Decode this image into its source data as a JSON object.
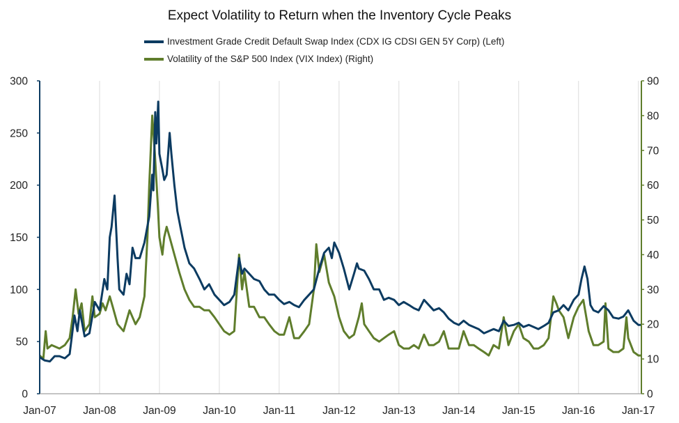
{
  "chart_data": {
    "type": "line",
    "title": "Expect Volatility to Return when the Inventory Cycle Peaks",
    "x_labels": [
      "Jan-07",
      "Jan-08",
      "Jan-09",
      "Jan-10",
      "Jan-11",
      "Jan-12",
      "Jan-13",
      "Jan-14",
      "Jan-15",
      "Jan-16",
      "Jan-17"
    ],
    "x_range": [
      2007.0,
      2017.05
    ],
    "left_axis": {
      "min": 0,
      "max": 300,
      "ticks": [
        0,
        50,
        100,
        150,
        200,
        250,
        300
      ],
      "color": "#0c3b61"
    },
    "right_axis": {
      "min": 0,
      "max": 90,
      "ticks": [
        0,
        10,
        20,
        30,
        40,
        50,
        60,
        70,
        80,
        90
      ],
      "color": "#5f7d2c"
    },
    "grid": "vertical",
    "legend_position": "top-center",
    "series": [
      {
        "name": "Investment Grade Credit Default Swap Index (CDX IG CDSI GEN 5Y Corp) (Left)",
        "axis": "left",
        "color": "#0c3b61",
        "points": [
          [
            2007.0,
            35
          ],
          [
            2007.08,
            32
          ],
          [
            2007.17,
            31
          ],
          [
            2007.25,
            36
          ],
          [
            2007.33,
            36
          ],
          [
            2007.42,
            34
          ],
          [
            2007.5,
            38
          ],
          [
            2007.58,
            75
          ],
          [
            2007.63,
            60
          ],
          [
            2007.67,
            80
          ],
          [
            2007.75,
            55
          ],
          [
            2007.83,
            58
          ],
          [
            2007.92,
            88
          ],
          [
            2008.0,
            80
          ],
          [
            2008.08,
            110
          ],
          [
            2008.13,
            100
          ],
          [
            2008.17,
            150
          ],
          [
            2008.2,
            160
          ],
          [
            2008.25,
            190
          ],
          [
            2008.3,
            130
          ],
          [
            2008.33,
            100
          ],
          [
            2008.4,
            95
          ],
          [
            2008.45,
            115
          ],
          [
            2008.5,
            105
          ],
          [
            2008.55,
            140
          ],
          [
            2008.6,
            130
          ],
          [
            2008.67,
            130
          ],
          [
            2008.75,
            145
          ],
          [
            2008.83,
            170
          ],
          [
            2008.88,
            210
          ],
          [
            2008.9,
            195
          ],
          [
            2008.93,
            270
          ],
          [
            2008.95,
            240
          ],
          [
            2008.98,
            280
          ],
          [
            2009.0,
            230
          ],
          [
            2009.05,
            215
          ],
          [
            2009.08,
            205
          ],
          [
            2009.12,
            210
          ],
          [
            2009.17,
            250
          ],
          [
            2009.2,
            230
          ],
          [
            2009.25,
            200
          ],
          [
            2009.3,
            175
          ],
          [
            2009.35,
            160
          ],
          [
            2009.42,
            140
          ],
          [
            2009.5,
            125
          ],
          [
            2009.58,
            120
          ],
          [
            2009.67,
            110
          ],
          [
            2009.75,
            100
          ],
          [
            2009.83,
            105
          ],
          [
            2009.92,
            95
          ],
          [
            2010.0,
            90
          ],
          [
            2010.08,
            85
          ],
          [
            2010.17,
            88
          ],
          [
            2010.25,
            95
          ],
          [
            2010.33,
            130
          ],
          [
            2010.38,
            115
          ],
          [
            2010.42,
            120
          ],
          [
            2010.5,
            115
          ],
          [
            2010.58,
            110
          ],
          [
            2010.67,
            108
          ],
          [
            2010.75,
            100
          ],
          [
            2010.83,
            95
          ],
          [
            2010.92,
            95
          ],
          [
            2011.0,
            90
          ],
          [
            2011.08,
            86
          ],
          [
            2011.17,
            88
          ],
          [
            2011.25,
            85
          ],
          [
            2011.33,
            83
          ],
          [
            2011.42,
            90
          ],
          [
            2011.5,
            95
          ],
          [
            2011.58,
            100
          ],
          [
            2011.67,
            120
          ],
          [
            2011.75,
            135
          ],
          [
            2011.83,
            140
          ],
          [
            2011.88,
            130
          ],
          [
            2011.92,
            145
          ],
          [
            2012.0,
            135
          ],
          [
            2012.08,
            120
          ],
          [
            2012.17,
            100
          ],
          [
            2012.25,
            115
          ],
          [
            2012.3,
            125
          ],
          [
            2012.33,
            120
          ],
          [
            2012.42,
            118
          ],
          [
            2012.5,
            110
          ],
          [
            2012.58,
            100
          ],
          [
            2012.67,
            100
          ],
          [
            2012.75,
            90
          ],
          [
            2012.83,
            92
          ],
          [
            2012.92,
            90
          ],
          [
            2013.0,
            85
          ],
          [
            2013.08,
            88
          ],
          [
            2013.17,
            85
          ],
          [
            2013.25,
            82
          ],
          [
            2013.33,
            80
          ],
          [
            2013.42,
            90
          ],
          [
            2013.5,
            85
          ],
          [
            2013.58,
            80
          ],
          [
            2013.67,
            82
          ],
          [
            2013.75,
            78
          ],
          [
            2013.83,
            72
          ],
          [
            2013.92,
            68
          ],
          [
            2014.0,
            66
          ],
          [
            2014.08,
            70
          ],
          [
            2014.17,
            66
          ],
          [
            2014.25,
            64
          ],
          [
            2014.33,
            62
          ],
          [
            2014.42,
            58
          ],
          [
            2014.5,
            60
          ],
          [
            2014.58,
            62
          ],
          [
            2014.67,
            60
          ],
          [
            2014.75,
            70
          ],
          [
            2014.83,
            65
          ],
          [
            2014.92,
            66
          ],
          [
            2015.0,
            68
          ],
          [
            2015.08,
            64
          ],
          [
            2015.17,
            66
          ],
          [
            2015.25,
            64
          ],
          [
            2015.33,
            62
          ],
          [
            2015.42,
            65
          ],
          [
            2015.5,
            68
          ],
          [
            2015.58,
            78
          ],
          [
            2015.67,
            80
          ],
          [
            2015.75,
            85
          ],
          [
            2015.83,
            80
          ],
          [
            2015.92,
            90
          ],
          [
            2016.0,
            95
          ],
          [
            2016.05,
            110
          ],
          [
            2016.1,
            122
          ],
          [
            2016.15,
            110
          ],
          [
            2016.2,
            85
          ],
          [
            2016.25,
            80
          ],
          [
            2016.33,
            78
          ],
          [
            2016.42,
            84
          ],
          [
            2016.5,
            80
          ],
          [
            2016.58,
            73
          ],
          [
            2016.67,
            72
          ],
          [
            2016.75,
            74
          ],
          [
            2016.83,
            80
          ],
          [
            2016.92,
            70
          ],
          [
            2017.0,
            66
          ],
          [
            2017.05,
            66
          ]
        ]
      },
      {
        "name": "Volatility of the S&P 500 Index (VIX Index) (Right)",
        "axis": "right",
        "color": "#5f7d2c",
        "points": [
          [
            2007.0,
            11
          ],
          [
            2007.06,
            10
          ],
          [
            2007.1,
            18
          ],
          [
            2007.13,
            13
          ],
          [
            2007.2,
            14
          ],
          [
            2007.33,
            13
          ],
          [
            2007.42,
            14
          ],
          [
            2007.5,
            16
          ],
          [
            2007.55,
            22
          ],
          [
            2007.6,
            30
          ],
          [
            2007.65,
            23
          ],
          [
            2007.7,
            26
          ],
          [
            2007.75,
            18
          ],
          [
            2007.83,
            20
          ],
          [
            2007.88,
            28
          ],
          [
            2007.92,
            22
          ],
          [
            2008.0,
            23
          ],
          [
            2008.05,
            26
          ],
          [
            2008.1,
            24
          ],
          [
            2008.17,
            28
          ],
          [
            2008.22,
            25
          ],
          [
            2008.3,
            20
          ],
          [
            2008.4,
            18
          ],
          [
            2008.5,
            24
          ],
          [
            2008.55,
            22
          ],
          [
            2008.6,
            20
          ],
          [
            2008.67,
            22
          ],
          [
            2008.75,
            28
          ],
          [
            2008.8,
            45
          ],
          [
            2008.83,
            60
          ],
          [
            2008.88,
            80
          ],
          [
            2008.92,
            70
          ],
          [
            2008.97,
            55
          ],
          [
            2009.0,
            45
          ],
          [
            2009.05,
            40
          ],
          [
            2009.08,
            45
          ],
          [
            2009.12,
            48
          ],
          [
            2009.17,
            45
          ],
          [
            2009.25,
            40
          ],
          [
            2009.33,
            35
          ],
          [
            2009.42,
            30
          ],
          [
            2009.5,
            27
          ],
          [
            2009.58,
            25
          ],
          [
            2009.67,
            25
          ],
          [
            2009.75,
            24
          ],
          [
            2009.83,
            24
          ],
          [
            2009.92,
            22
          ],
          [
            2010.0,
            20
          ],
          [
            2010.08,
            18
          ],
          [
            2010.17,
            17
          ],
          [
            2010.25,
            18
          ],
          [
            2010.33,
            40
          ],
          [
            2010.38,
            30
          ],
          [
            2010.42,
            35
          ],
          [
            2010.5,
            25
          ],
          [
            2010.58,
            25
          ],
          [
            2010.67,
            22
          ],
          [
            2010.75,
            22
          ],
          [
            2010.83,
            20
          ],
          [
            2010.92,
            18
          ],
          [
            2011.0,
            17
          ],
          [
            2011.08,
            17
          ],
          [
            2011.17,
            22
          ],
          [
            2011.25,
            16
          ],
          [
            2011.33,
            16
          ],
          [
            2011.42,
            18
          ],
          [
            2011.5,
            20
          ],
          [
            2011.58,
            30
          ],
          [
            2011.62,
            43
          ],
          [
            2011.67,
            35
          ],
          [
            2011.75,
            40
          ],
          [
            2011.83,
            32
          ],
          [
            2011.92,
            28
          ],
          [
            2012.0,
            22
          ],
          [
            2012.08,
            18
          ],
          [
            2012.17,
            16
          ],
          [
            2012.25,
            17
          ],
          [
            2012.33,
            22
          ],
          [
            2012.38,
            26
          ],
          [
            2012.42,
            20
          ],
          [
            2012.5,
            18
          ],
          [
            2012.58,
            16
          ],
          [
            2012.67,
            15
          ],
          [
            2012.75,
            16
          ],
          [
            2012.83,
            17
          ],
          [
            2012.92,
            18
          ],
          [
            2013.0,
            14
          ],
          [
            2013.08,
            13
          ],
          [
            2013.17,
            13
          ],
          [
            2013.25,
            14
          ],
          [
            2013.33,
            13
          ],
          [
            2013.42,
            17
          ],
          [
            2013.5,
            14
          ],
          [
            2013.58,
            14
          ],
          [
            2013.67,
            15
          ],
          [
            2013.75,
            18
          ],
          [
            2013.83,
            13
          ],
          [
            2013.92,
            13
          ],
          [
            2014.0,
            13
          ],
          [
            2014.08,
            18
          ],
          [
            2014.17,
            14
          ],
          [
            2014.25,
            14
          ],
          [
            2014.33,
            13
          ],
          [
            2014.42,
            12
          ],
          [
            2014.5,
            11
          ],
          [
            2014.58,
            14
          ],
          [
            2014.67,
            13
          ],
          [
            2014.75,
            22
          ],
          [
            2014.83,
            14
          ],
          [
            2014.92,
            18
          ],
          [
            2015.0,
            20
          ],
          [
            2015.08,
            16
          ],
          [
            2015.17,
            15
          ],
          [
            2015.25,
            13
          ],
          [
            2015.33,
            13
          ],
          [
            2015.42,
            14
          ],
          [
            2015.5,
            16
          ],
          [
            2015.58,
            28
          ],
          [
            2015.63,
            26
          ],
          [
            2015.67,
            24
          ],
          [
            2015.75,
            22
          ],
          [
            2015.83,
            16
          ],
          [
            2015.92,
            22
          ],
          [
            2016.0,
            25
          ],
          [
            2016.08,
            27
          ],
          [
            2016.13,
            22
          ],
          [
            2016.17,
            18
          ],
          [
            2016.25,
            14
          ],
          [
            2016.33,
            14
          ],
          [
            2016.42,
            15
          ],
          [
            2016.45,
            26
          ],
          [
            2016.5,
            13
          ],
          [
            2016.58,
            12
          ],
          [
            2016.67,
            12
          ],
          [
            2016.75,
            13
          ],
          [
            2016.8,
            22
          ],
          [
            2016.83,
            16
          ],
          [
            2016.92,
            12
          ],
          [
            2017.0,
            11
          ],
          [
            2017.05,
            11
          ]
        ]
      }
    ]
  }
}
